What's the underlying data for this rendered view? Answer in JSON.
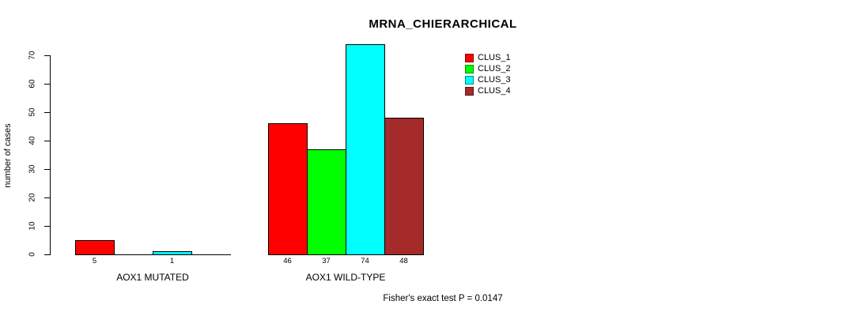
{
  "title": "MRNA_CHIERARCHICAL",
  "y_axis_label": "number of cases",
  "footnote": "Fisher's exact test P = 0.0147",
  "legend": {
    "entries": [
      {
        "label": "CLUS_1",
        "color": "#ff0000"
      },
      {
        "label": "CLUS_2",
        "color": "#00ff00"
      },
      {
        "label": "CLUS_3",
        "color": "#00ffff"
      },
      {
        "label": "CLUS_4",
        "color": "#a52a2a"
      }
    ]
  },
  "chart_data": {
    "type": "bar",
    "title": "MRNA_CHIERARCHICAL",
    "xlabel": "",
    "ylabel": "number of cases",
    "ylim": [
      0,
      70
    ],
    "yticks": [
      0,
      10,
      20,
      30,
      40,
      50,
      60,
      70
    ],
    "grid": false,
    "legend_position": "top-right",
    "categories": [
      "AOX1 MUTATED",
      "AOX1 WILD-TYPE"
    ],
    "series": [
      {
        "name": "CLUS_1",
        "color": "#ff0000",
        "values": [
          5,
          46
        ]
      },
      {
        "name": "CLUS_2",
        "color": "#00ff00",
        "values": [
          0,
          37
        ]
      },
      {
        "name": "CLUS_3",
        "color": "#00ffff",
        "values": [
          1,
          74
        ]
      },
      {
        "name": "CLUS_4",
        "color": "#a52a2a",
        "values": [
          0,
          48
        ]
      }
    ],
    "bar_value_labels": [
      [
        "5",
        "",
        "1",
        ""
      ],
      [
        "46",
        "37",
        "74",
        "48"
      ]
    ],
    "annotation": "Fisher's exact test P = 0.0147"
  }
}
